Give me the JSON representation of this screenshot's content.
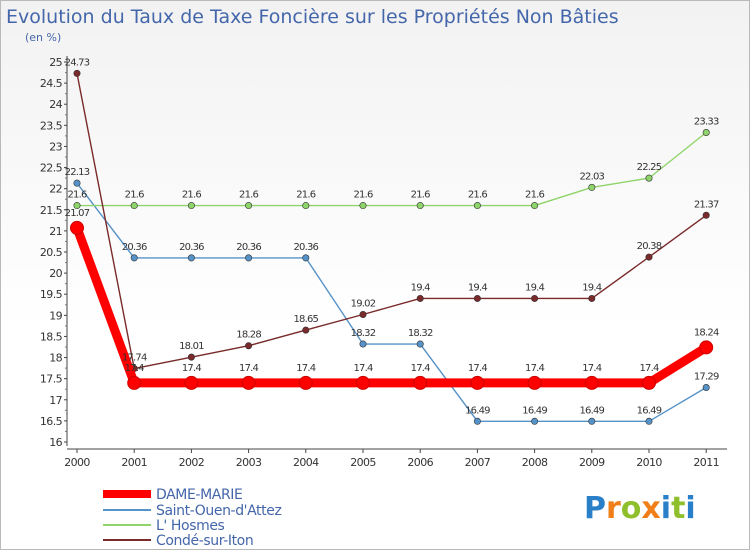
{
  "title": "Evolution du Taux de Taxe Foncière sur les Propriétés Non Bâties",
  "subtitle": "(en %)",
  "logo": "Proxiti",
  "chart_data": {
    "type": "line",
    "title": "Evolution du Taux de Taxe Foncière sur les Propriétés Non Bâties",
    "ylabel": "(en %)",
    "xlabel": "",
    "x": [
      "2000",
      "2001",
      "2002",
      "2003",
      "2004",
      "2005",
      "2006",
      "2007",
      "2008",
      "2009",
      "2010",
      "2011"
    ],
    "ylim": [
      16,
      25
    ],
    "yticks": [
      "16",
      "16.5",
      "17",
      "17.5",
      "18",
      "18.5",
      "19",
      "19.5",
      "20",
      "20.5",
      "21",
      "21.5",
      "22",
      "22.5",
      "23",
      "23.5",
      "24",
      "24.5",
      "25"
    ],
    "grid": false,
    "legend_position": "bottom-left",
    "series": [
      {
        "name": "DAME-MARIE",
        "color": "#ff0000",
        "values": [
          21.07,
          17.4,
          17.4,
          17.4,
          17.4,
          17.4,
          17.4,
          17.4,
          17.4,
          17.4,
          17.4,
          18.24
        ],
        "labels": [
          "21.07",
          "17.4",
          "17.4",
          "17.4",
          "17.4",
          "17.4",
          "17.4",
          "17.4",
          "17.4",
          "17.4",
          "17.4",
          "18.24"
        ]
      },
      {
        "name": "Saint-Ouen-d'Attez",
        "color": "#5592c8",
        "values": [
          22.13,
          20.36,
          20.36,
          20.36,
          20.36,
          18.32,
          18.32,
          16.49,
          16.49,
          16.49,
          16.49,
          17.29
        ],
        "labels": [
          "22.13",
          "20.36",
          "20.36",
          "20.36",
          "20.36",
          "18.32",
          "18.32",
          "16.49",
          "16.49",
          "16.49",
          "16.49",
          "17.29"
        ]
      },
      {
        "name": "L' Hosmes",
        "color": "#8fd46a",
        "values": [
          21.6,
          21.6,
          21.6,
          21.6,
          21.6,
          21.6,
          21.6,
          21.6,
          21.6,
          22.03,
          22.25,
          23.33
        ],
        "labels": [
          "21.6",
          "21.6",
          "21.6",
          "21.6",
          "21.6",
          "21.6",
          "21.6",
          "21.6",
          "21.6",
          "22.03",
          "22.25",
          "23.33"
        ]
      },
      {
        "name": "Condé-sur-Iton",
        "color": "#7a2a2a",
        "values": [
          24.73,
          17.74,
          18.01,
          18.28,
          18.65,
          19.02,
          19.4,
          19.4,
          19.4,
          19.4,
          20.38,
          21.37
        ],
        "labels": [
          "24.73",
          "17.74",
          "18.01",
          "18.28",
          "18.65",
          "19.02",
          "19.4",
          "19.4",
          "19.4",
          "19.4",
          "20.38",
          "21.37"
        ]
      }
    ]
  }
}
